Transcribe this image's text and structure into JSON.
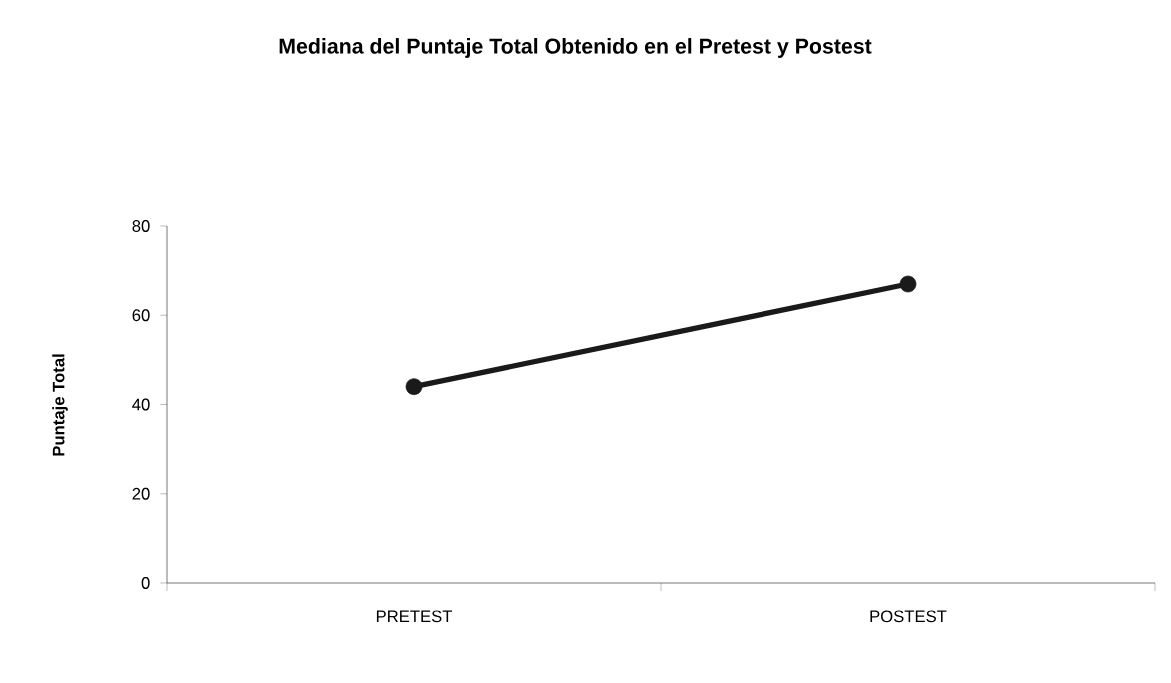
{
  "chart_data": {
    "type": "line",
    "title": "Mediana del Puntaje Total Obtenido en el Pretest y  Postest",
    "ylabel": "Puntaje Total",
    "categories": [
      "PRETEST",
      "POSTEST"
    ],
    "series": [
      {
        "color": "#1a1a1a",
        "values": [
          44,
          67
        ]
      }
    ],
    "marker": "circle",
    "line_style": "solid",
    "ylim": [
      0,
      80
    ],
    "yticks": [
      0,
      20,
      40,
      60,
      80
    ]
  }
}
